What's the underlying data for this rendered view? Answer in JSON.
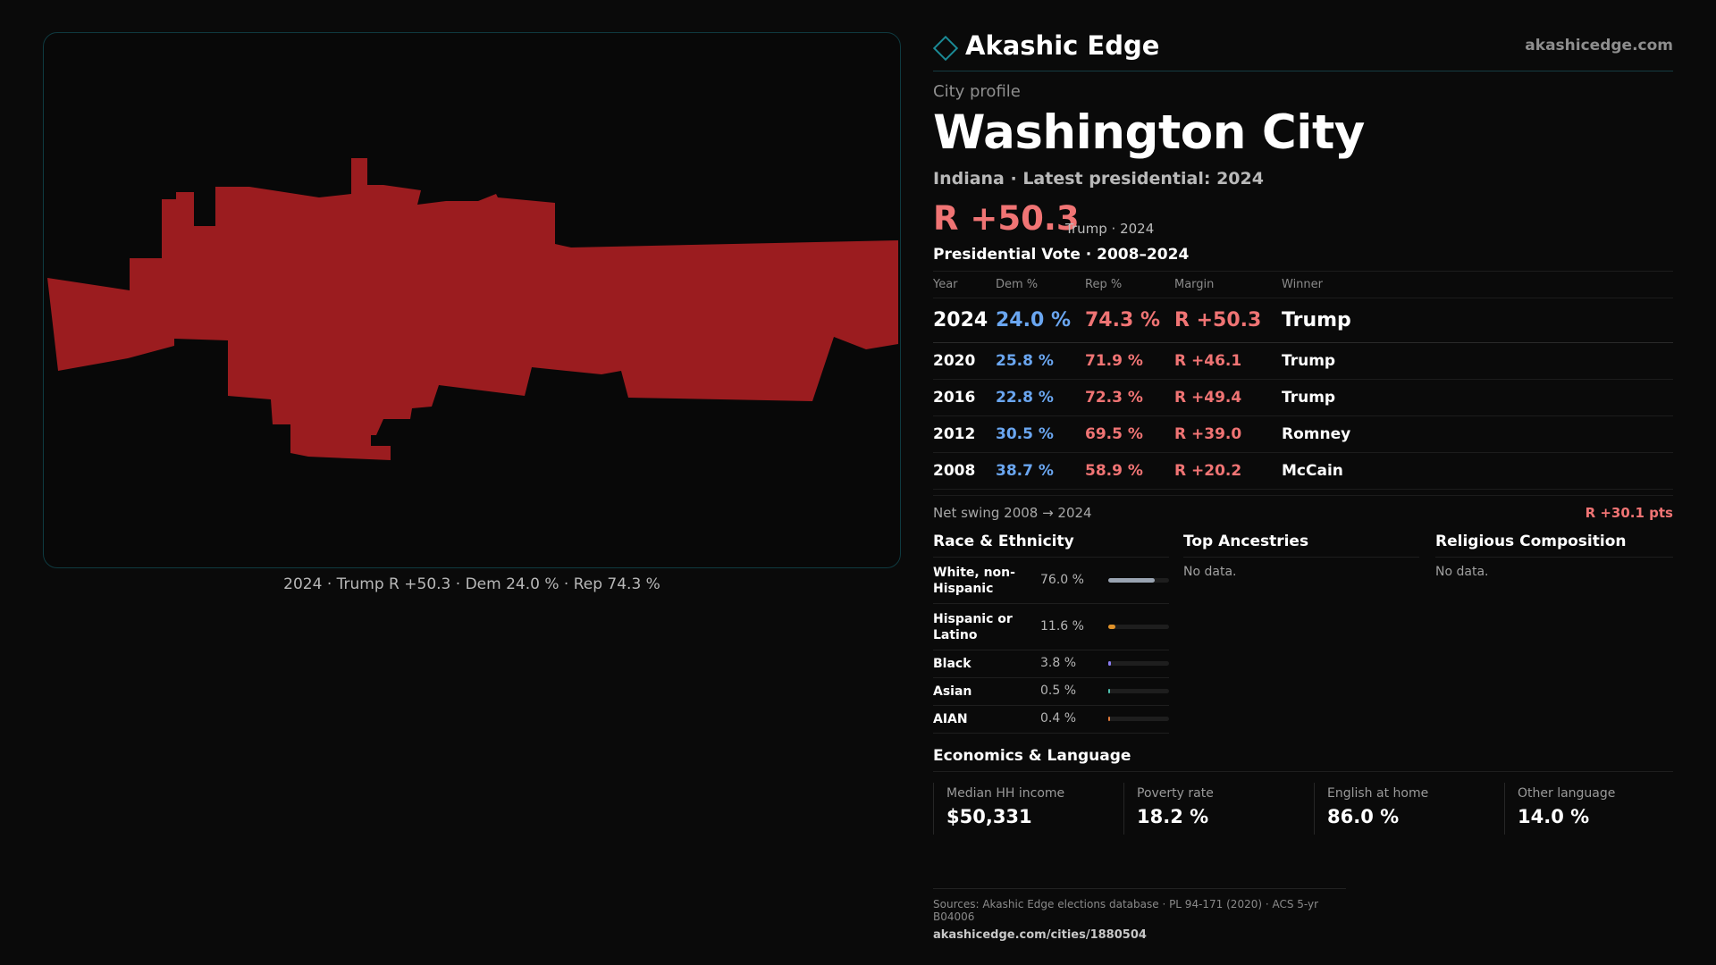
{
  "map": {
    "caption": "2024 · Trump R +50.3 · Dem 24.0 % · Rep 74.3 %",
    "fill_color": "#9b1c1f"
  },
  "header": {
    "brand": "Akashic Edge",
    "site": "akashicedge.com"
  },
  "profile": {
    "eyebrow": "City profile",
    "title": "Washington City",
    "subtitle": "Indiana · Latest presidential: 2024",
    "margin": "R +50.3",
    "margin_note": "Trump · 2024"
  },
  "votes": {
    "title": "Presidential Vote · 2008–2024",
    "headers": [
      "Year",
      "Dem %",
      "Rep %",
      "Margin",
      "Winner"
    ],
    "rows": [
      {
        "year": "2024",
        "dem": "24.0 %",
        "rep": "74.3 %",
        "margin": "R +50.3",
        "winner": "Trump"
      },
      {
        "year": "2020",
        "dem": "25.8 %",
        "rep": "71.9 %",
        "margin": "R +46.1",
        "winner": "Trump"
      },
      {
        "year": "2016",
        "dem": "22.8 %",
        "rep": "72.3 %",
        "margin": "R +49.4",
        "winner": "Trump"
      },
      {
        "year": "2012",
        "dem": "30.5 %",
        "rep": "69.5 %",
        "margin": "R +39.0",
        "winner": "Romney"
      },
      {
        "year": "2008",
        "dem": "38.7 %",
        "rep": "58.9 %",
        "margin": "R +20.2",
        "winner": "McCain"
      }
    ],
    "swing_label": "Net swing 2008 → 2024",
    "swing_value": "R +30.1 pts"
  },
  "race": {
    "title": "Race & Ethnicity",
    "rows": [
      {
        "label": "White, non-Hispanic",
        "pct": "76.0 %",
        "value": 76.0,
        "color": "#9aa4b2"
      },
      {
        "label": "Hispanic or Latino",
        "pct": "11.6 %",
        "value": 11.6,
        "color": "#e0922a"
      },
      {
        "label": "Black",
        "pct": "3.8 %",
        "value": 3.8,
        "color": "#8a7cf0"
      },
      {
        "label": "Asian",
        "pct": "0.5 %",
        "value": 0.5,
        "color": "#4fc0b0"
      },
      {
        "label": "AIAN",
        "pct": "0.4 %",
        "value": 0.4,
        "color": "#e07a3a"
      }
    ]
  },
  "ancestries": {
    "title": "Top Ancestries",
    "empty": "No data."
  },
  "religion": {
    "title": "Religious Composition",
    "empty": "No data."
  },
  "economics": {
    "title": "Economics & Language",
    "stats": [
      {
        "label": "Median HH income",
        "value": "$50,331"
      },
      {
        "label": "Poverty rate",
        "value": "18.2 %"
      },
      {
        "label": "English at home",
        "value": "86.0 %"
      },
      {
        "label": "Other language",
        "value": "14.0 %"
      }
    ]
  },
  "footer": {
    "sources": "Sources: Akashic Edge elections database · PL 94-171 (2020) · ACS 5-yr B04006",
    "url": "akashicedge.com/cities/1880504"
  }
}
